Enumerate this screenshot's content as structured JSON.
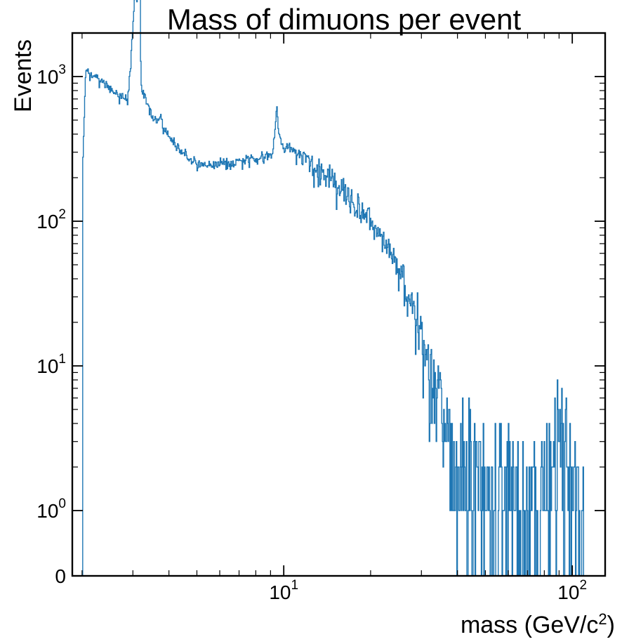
{
  "chart_data": {
    "type": "histogram-step",
    "title": "Mass of dimuons per event",
    "xlabel": "mass (GeV/c",
    "xlabel_sup": "2",
    "xlabel_end": ")",
    "ylabel": "Events",
    "xscale": "log",
    "yscale": "symlog",
    "xlim": [
      1.85,
      130
    ],
    "ylim": [
      0,
      6000
    ],
    "grid": false,
    "color": "#1f77b4",
    "x_ticks": [
      {
        "value": 10,
        "base": "10",
        "exp": "1"
      },
      {
        "value": 100,
        "base": "10",
        "exp": "2"
      }
    ],
    "y_ticks": [
      {
        "value": 0,
        "plain": "0"
      },
      {
        "value": 1,
        "base": "10",
        "exp": "0"
      },
      {
        "value": 10,
        "base": "10",
        "exp": "1"
      },
      {
        "value": 100,
        "base": "10",
        "exp": "2"
      },
      {
        "value": 1000,
        "base": "10",
        "exp": "3"
      }
    ],
    "bins": {
      "x_start": 2.0,
      "x_end": 110.0,
      "count": 800
    },
    "profile": [
      [
        2.0,
        0
      ],
      [
        2.01,
        260
      ],
      [
        2.06,
        1060
      ],
      [
        2.3,
        960
      ],
      [
        2.55,
        800
      ],
      [
        2.88,
        680
      ],
      [
        2.98,
        1700
      ],
      [
        3.05,
        3650
      ],
      [
        3.18,
        3650
      ],
      [
        3.2,
        860
      ],
      [
        3.5,
        520
      ],
      [
        3.68,
        480
      ],
      [
        3.75,
        560
      ],
      [
        3.85,
        420
      ],
      [
        4.2,
        330
      ],
      [
        5.0,
        245
      ],
      [
        6.5,
        250
      ],
      [
        8.0,
        270
      ],
      [
        9.1,
        285
      ],
      [
        9.35,
        450
      ],
      [
        9.46,
        640
      ],
      [
        9.58,
        420
      ],
      [
        10.0,
        310
      ],
      [
        10.5,
        330
      ],
      [
        12.0,
        255
      ],
      [
        15.0,
        185
      ],
      [
        20.0,
        105
      ],
      [
        25.0,
        48
      ],
      [
        30.0,
        15
      ],
      [
        35.0,
        5.2
      ],
      [
        40.0,
        2.4
      ],
      [
        50.0,
        1.6
      ],
      [
        70.0,
        1.3
      ],
      [
        85.0,
        1.8
      ],
      [
        91.0,
        4.4
      ],
      [
        93.0,
        3.2
      ],
      [
        100.0,
        1.4
      ],
      [
        110.0,
        1.0
      ]
    ],
    "noise_start": 11,
    "noise_amp": 0.12,
    "seed": 20231
  }
}
